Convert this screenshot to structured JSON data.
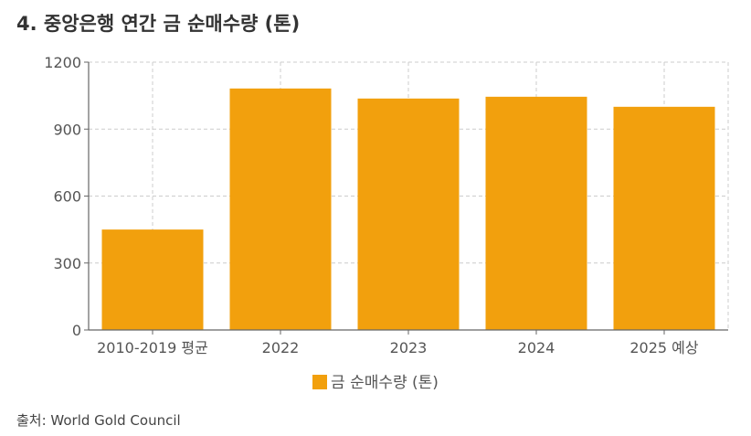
{
  "page_title": "4. 중앙은행 연간 금 순매수량 (톤)",
  "source": "출처: World Gold Council",
  "colors": {
    "bar": "#F2A00D",
    "axis": "#666666",
    "grid": "#CCCCCC",
    "text": "#555555"
  },
  "chart_data": {
    "type": "bar",
    "categories": [
      "2010-2019 평균",
      "2022",
      "2023",
      "2024",
      "2025 예상"
    ],
    "series": [
      {
        "name": "금 순매수량 (톤)",
        "values": [
          450,
          1082,
          1037,
          1045,
          1000
        ]
      }
    ],
    "yticks": [
      0,
      300,
      600,
      900,
      1200
    ],
    "ylim": [
      0,
      1200
    ],
    "grid": true,
    "legend_position": "bottom-center"
  }
}
